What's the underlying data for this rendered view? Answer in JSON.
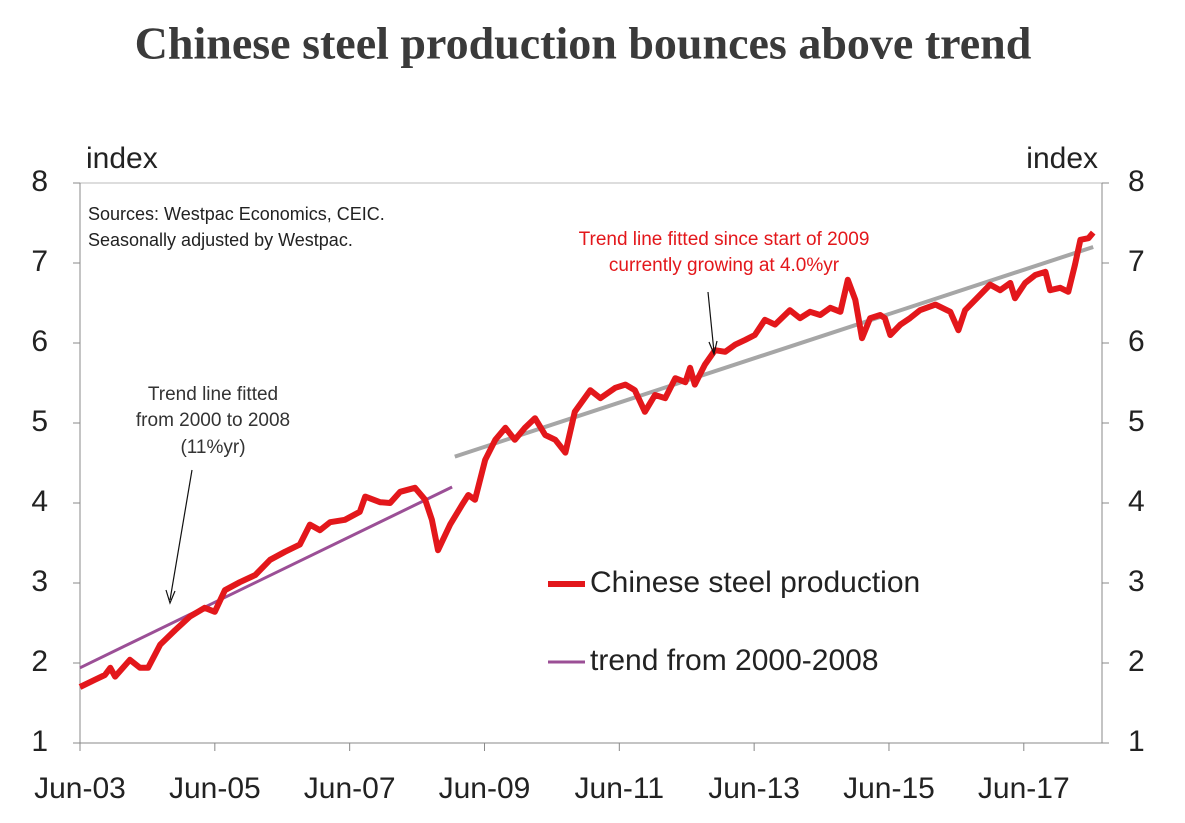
{
  "chart_data": {
    "type": "line",
    "title": "Chinese steel production bounces above trend",
    "y_label": "index",
    "y2_label": "index",
    "source_note": [
      "Sources: Westpac Economics, CEIC.",
      "Seasonally adjusted by Westpac."
    ],
    "annotations": [
      {
        "lines": [
          "Trend line fitted since start of 2009",
          "currently growing at 4.0%yr"
        ],
        "color": "#e3171b"
      },
      {
        "lines": [
          "Trend line fitted",
          "from 2000 to 2008",
          "(11%yr)"
        ],
        "color": "#333333"
      }
    ],
    "xlim": [
      2003.5,
      2018.66
    ],
    "xticks": [
      {
        "value": 2003.5,
        "label": "Jun-03"
      },
      {
        "value": 2005.5,
        "label": "Jun-05"
      },
      {
        "value": 2007.5,
        "label": "Jun-07"
      },
      {
        "value": 2009.5,
        "label": "Jun-09"
      },
      {
        "value": 2011.5,
        "label": "Jun-11"
      },
      {
        "value": 2013.5,
        "label": "Jun-13"
      },
      {
        "value": 2015.5,
        "label": "Jun-15"
      },
      {
        "value": 2017.5,
        "label": "Jun-17"
      }
    ],
    "ylim": [
      1,
      8
    ],
    "yticks": [
      1,
      2,
      3,
      4,
      5,
      6,
      7,
      8
    ],
    "y2lim": [
      1,
      8
    ],
    "y2ticks": [
      1,
      2,
      3,
      4,
      5,
      6,
      7,
      8
    ],
    "legend": "center-right",
    "series": [
      {
        "name": "Chinese steel production",
        "color": "#e3171b",
        "width": 6,
        "x": [
          2003.5,
          2003.72,
          2003.87,
          2003.95,
          2004.02,
          2004.24,
          2004.39,
          2004.51,
          2004.69,
          2004.91,
          2005.13,
          2005.35,
          2005.5,
          2005.65,
          2005.87,
          2006.1,
          2006.32,
          2006.54,
          2006.76,
          2006.91,
          2007.06,
          2007.21,
          2007.43,
          2007.65,
          2007.73,
          2007.95,
          2008.1,
          2008.25,
          2008.47,
          2008.62,
          2008.72,
          2008.81,
          2008.99,
          2009.17,
          2009.26,
          2009.36,
          2009.51,
          2009.66,
          2009.81,
          2009.95,
          2010.1,
          2010.25,
          2010.4,
          2010.55,
          2010.7,
          2010.84,
          2011.07,
          2011.22,
          2011.44,
          2011.59,
          2011.73,
          2011.88,
          2012.03,
          2012.18,
          2012.33,
          2012.48,
          2012.55,
          2012.62,
          2012.77,
          2012.92,
          2013.07,
          2013.22,
          2013.37,
          2013.51,
          2013.66,
          2013.81,
          2014.03,
          2014.18,
          2014.33,
          2014.48,
          2014.63,
          2014.78,
          2014.89,
          2015.0,
          2015.1,
          2015.22,
          2015.37,
          2015.44,
          2015.52,
          2015.67,
          2015.81,
          2015.96,
          2016.19,
          2016.41,
          2016.53,
          2016.63,
          2016.85,
          2017.0,
          2017.15,
          2017.3,
          2017.37,
          2017.52,
          2017.67,
          2017.82,
          2017.89,
          2018.04,
          2018.16,
          2018.26,
          2018.34,
          2018.46,
          2018.53
        ],
        "values": [
          1.7,
          1.79,
          1.85,
          1.94,
          1.83,
          2.04,
          1.94,
          1.94,
          2.23,
          2.41,
          2.58,
          2.69,
          2.64,
          2.91,
          3.01,
          3.1,
          3.29,
          3.39,
          3.48,
          3.73,
          3.66,
          3.76,
          3.79,
          3.89,
          4.08,
          4.01,
          4.0,
          4.14,
          4.19,
          4.04,
          3.79,
          3.41,
          3.73,
          3.98,
          4.1,
          4.04,
          4.54,
          4.79,
          4.94,
          4.79,
          4.94,
          5.06,
          4.85,
          4.79,
          4.63,
          5.14,
          5.41,
          5.31,
          5.44,
          5.48,
          5.41,
          5.14,
          5.35,
          5.31,
          5.56,
          5.51,
          5.69,
          5.48,
          5.73,
          5.91,
          5.89,
          5.98,
          6.04,
          6.1,
          6.29,
          6.23,
          6.41,
          6.31,
          6.39,
          6.35,
          6.44,
          6.39,
          6.79,
          6.54,
          6.06,
          6.31,
          6.35,
          6.31,
          6.1,
          6.23,
          6.31,
          6.41,
          6.48,
          6.39,
          6.16,
          6.41,
          6.6,
          6.73,
          6.66,
          6.75,
          6.56,
          6.75,
          6.85,
          6.89,
          6.66,
          6.69,
          6.64,
          6.98,
          7.29,
          7.31,
          7.38
        ]
      },
      {
        "name": "trend from 2000-2008",
        "color": "#9b4f96",
        "width": 3,
        "x": [
          2003.5,
          2009.02
        ],
        "values": [
          1.94,
          4.2
        ]
      },
      {
        "color": "#a6a6a6",
        "width": 4,
        "x": [
          2009.06,
          2018.53
        ],
        "values": [
          4.58,
          7.2
        ]
      }
    ]
  }
}
